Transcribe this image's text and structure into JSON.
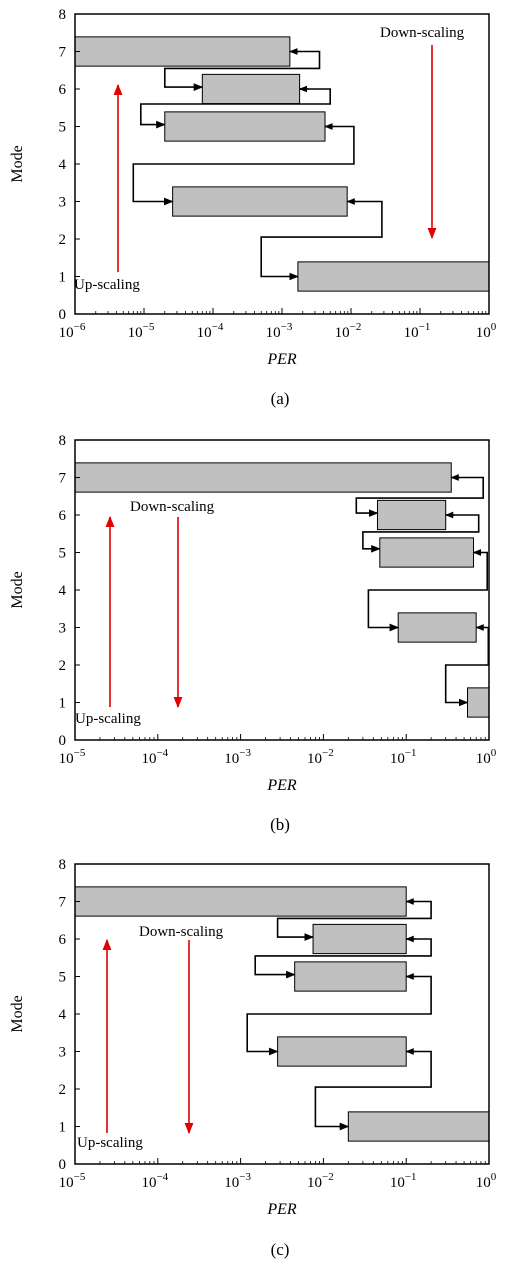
{
  "chart_data": [
    {
      "type": "range-bar",
      "caption": "(a)",
      "xlabel": "PER",
      "ylabel": "Mode",
      "xscale": "log",
      "xlim": [
        1e-06,
        1
      ],
      "ylim": [
        0,
        8
      ],
      "x_ticks": [
        "10^-6",
        "10^-5",
        "10^-4",
        "10^-3",
        "10^-2",
        "10^-1",
        "10^0"
      ],
      "y_ticks": [
        "0",
        "1",
        "2",
        "3",
        "4",
        "5",
        "6",
        "7",
        "8"
      ],
      "grid": false,
      "bars": [
        {
          "mode": 7,
          "x_min": 1e-06,
          "x_max": 0.0013
        },
        {
          "mode": 6,
          "x_min": 7e-05,
          "x_max": 0.0018
        },
        {
          "mode": 5,
          "x_min": 2e-05,
          "x_max": 0.0042
        },
        {
          "mode": 3,
          "x_min": 2.6e-05,
          "x_max": 0.0088
        },
        {
          "mode": 1,
          "x_min": 0.0017,
          "x_max": 1.0
        }
      ],
      "annotations": [
        {
          "text": "Up-scaling",
          "arrow": "up"
        },
        {
          "text": "Down-scaling",
          "arrow": "down"
        }
      ]
    },
    {
      "type": "range-bar",
      "caption": "(b)",
      "xlabel": "PER",
      "ylabel": "Mode",
      "xscale": "log",
      "xlim": [
        1e-05,
        1
      ],
      "ylim": [
        0,
        8
      ],
      "x_ticks": [
        "10^-5",
        "10^-4",
        "10^-3",
        "10^-2",
        "10^-1",
        "10^0"
      ],
      "y_ticks": [
        "0",
        "1",
        "2",
        "3",
        "4",
        "5",
        "6",
        "7",
        "8"
      ],
      "grid": false,
      "bars": [
        {
          "mode": 7,
          "x_min": 1e-05,
          "x_max": 0.35
        },
        {
          "mode": 6,
          "x_min": 0.045,
          "x_max": 0.3
        },
        {
          "mode": 5,
          "x_min": 0.048,
          "x_max": 0.65
        },
        {
          "mode": 3,
          "x_min": 0.08,
          "x_max": 0.7
        },
        {
          "mode": 1,
          "x_min": 0.55,
          "x_max": 1.0
        }
      ],
      "annotations": [
        {
          "text": "Up-scaling",
          "arrow": "up"
        },
        {
          "text": "Down-scaling",
          "arrow": "down"
        }
      ]
    },
    {
      "type": "range-bar",
      "caption": "(c)",
      "xlabel": "PER",
      "ylabel": "Mode",
      "xscale": "log",
      "xlim": [
        1e-05,
        1
      ],
      "ylim": [
        0,
        8
      ],
      "x_ticks": [
        "10^-5",
        "10^-4",
        "10^-3",
        "10^-2",
        "10^-1",
        "10^0"
      ],
      "y_ticks": [
        "0",
        "1",
        "2",
        "3",
        "4",
        "5",
        "6",
        "7",
        "8"
      ],
      "grid": false,
      "bars": [
        {
          "mode": 7,
          "x_min": 1e-05,
          "x_max": 0.1
        },
        {
          "mode": 6,
          "x_min": 0.0075,
          "x_max": 0.1
        },
        {
          "mode": 5,
          "x_min": 0.0045,
          "x_max": 0.1
        },
        {
          "mode": 3,
          "x_min": 0.0028,
          "x_max": 0.1
        },
        {
          "mode": 1,
          "x_min": 0.02,
          "x_max": 1.0
        }
      ],
      "annotations": [
        {
          "text": "Up-scaling",
          "arrow": "up"
        },
        {
          "text": "Down-scaling",
          "arrow": "down"
        }
      ]
    }
  ],
  "colors": {
    "bar_fill": "#c0c0c0",
    "arrow_red": "#e00000",
    "stroke": "#000000"
  }
}
